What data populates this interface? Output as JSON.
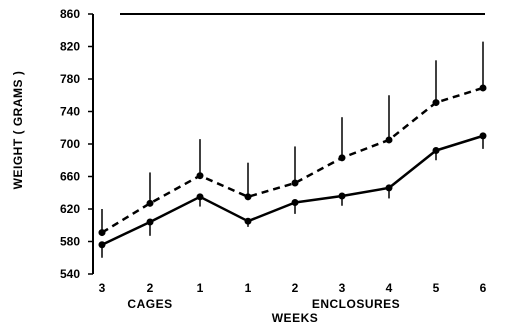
{
  "chart_data": {
    "type": "line",
    "xlabel": "WEEKS",
    "ylabel": "WEIGHT ( GRAMS )",
    "ylim": [
      540,
      860
    ],
    "yticks": [
      540,
      580,
      620,
      660,
      700,
      740,
      780,
      820,
      860
    ],
    "categories": [
      "3",
      "2",
      "1",
      "1",
      "2",
      "3",
      "4",
      "5",
      "6"
    ],
    "groups": [
      {
        "label": "CAGES",
        "span": [
          0,
          2
        ]
      },
      {
        "label": "ENCLOSURES",
        "span": [
          3,
          8
        ]
      }
    ],
    "reference_line": 860,
    "series": [
      {
        "style": "dashed",
        "values": [
          591,
          627,
          661,
          635,
          652,
          683,
          705,
          751,
          769
        ],
        "error_upper": [
          620,
          665,
          706,
          677,
          697,
          733,
          760,
          803,
          826
        ]
      },
      {
        "style": "solid",
        "values": [
          576,
          604,
          635,
          605,
          628,
          636,
          646,
          692,
          710
        ],
        "error_lower": [
          560,
          587,
          623,
          598,
          614,
          624,
          633,
          680,
          694
        ]
      }
    ]
  }
}
